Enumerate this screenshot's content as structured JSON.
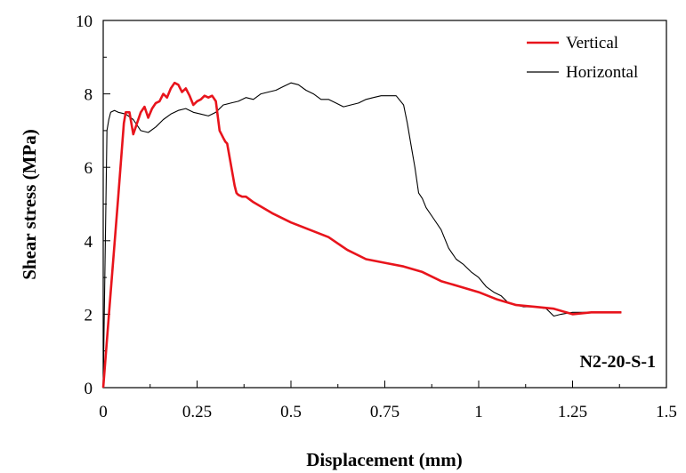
{
  "chart_data": {
    "type": "line",
    "title": "",
    "xlabel": "Displacement (mm)",
    "ylabel": "Shear stress (MPa)",
    "xlim": [
      0,
      1.5
    ],
    "ylim": [
      0,
      10
    ],
    "x_ticks": [
      0,
      0.25,
      0.5,
      0.75,
      1,
      1.25,
      1.5
    ],
    "x_tick_labels": [
      "0",
      "0.25",
      "0.5",
      "0.75",
      "1",
      "1.25",
      "1.5"
    ],
    "y_ticks": [
      0,
      2,
      4,
      6,
      8,
      10
    ],
    "y_tick_labels": [
      "0",
      "2",
      "4",
      "6",
      "8",
      "10"
    ],
    "grid": false,
    "legend_position": "top-right",
    "annotation": "N2-20-S-1",
    "series": [
      {
        "name": "Vertical",
        "color": "#e8141c",
        "x": [
          0,
          0.02,
          0.04,
          0.055,
          0.06,
          0.07,
          0.08,
          0.09,
          0.1,
          0.11,
          0.12,
          0.13,
          0.14,
          0.15,
          0.16,
          0.17,
          0.18,
          0.19,
          0.2,
          0.21,
          0.22,
          0.23,
          0.24,
          0.25,
          0.26,
          0.27,
          0.28,
          0.29,
          0.3,
          0.31,
          0.32,
          0.325,
          0.33,
          0.35,
          0.355,
          0.36,
          0.37,
          0.38,
          0.4,
          0.45,
          0.5,
          0.55,
          0.6,
          0.65,
          0.7,
          0.75,
          0.8,
          0.85,
          0.9,
          0.95,
          1.0,
          1.05,
          1.1,
          1.15,
          1.2,
          1.25,
          1.3,
          1.35,
          1.38
        ],
        "y": [
          0,
          2.6,
          5.2,
          7.2,
          7.5,
          7.5,
          6.9,
          7.2,
          7.5,
          7.65,
          7.35,
          7.6,
          7.75,
          7.8,
          8.0,
          7.9,
          8.15,
          8.3,
          8.25,
          8.05,
          8.15,
          7.95,
          7.7,
          7.8,
          7.85,
          7.95,
          7.9,
          7.95,
          7.8,
          7.0,
          6.8,
          6.7,
          6.65,
          5.5,
          5.3,
          5.25,
          5.2,
          5.2,
          5.05,
          4.75,
          4.5,
          4.3,
          4.1,
          3.75,
          3.5,
          3.4,
          3.3,
          3.15,
          2.9,
          2.75,
          2.6,
          2.4,
          2.25,
          2.2,
          2.15,
          2.0,
          2.05,
          2.05,
          2.05
        ]
      },
      {
        "name": "Horizontal",
        "color": "#000000",
        "x": [
          0,
          0.005,
          0.01,
          0.015,
          0.02,
          0.03,
          0.04,
          0.06,
          0.08,
          0.1,
          0.12,
          0.14,
          0.16,
          0.18,
          0.2,
          0.22,
          0.24,
          0.26,
          0.28,
          0.3,
          0.32,
          0.34,
          0.36,
          0.38,
          0.4,
          0.42,
          0.44,
          0.46,
          0.48,
          0.5,
          0.52,
          0.54,
          0.56,
          0.58,
          0.6,
          0.62,
          0.64,
          0.66,
          0.68,
          0.7,
          0.72,
          0.74,
          0.76,
          0.78,
          0.8,
          0.81,
          0.82,
          0.83,
          0.84,
          0.85,
          0.86,
          0.88,
          0.9,
          0.92,
          0.94,
          0.96,
          0.98,
          1.0,
          1.02,
          1.04,
          1.06,
          1.08,
          1.1,
          1.12,
          1.15,
          1.18,
          1.2,
          1.22,
          1.25,
          1.3,
          1.35,
          1.38
        ],
        "y": [
          0,
          3.5,
          7.0,
          7.3,
          7.5,
          7.55,
          7.5,
          7.45,
          7.3,
          7.0,
          6.95,
          7.1,
          7.3,
          7.45,
          7.55,
          7.6,
          7.5,
          7.45,
          7.4,
          7.5,
          7.7,
          7.75,
          7.8,
          7.9,
          7.85,
          8.0,
          8.05,
          8.1,
          8.2,
          8.3,
          8.25,
          8.1,
          8.0,
          7.85,
          7.85,
          7.75,
          7.65,
          7.7,
          7.75,
          7.85,
          7.9,
          7.95,
          7.95,
          7.95,
          7.7,
          7.2,
          6.6,
          6.0,
          5.3,
          5.15,
          4.9,
          4.6,
          4.3,
          3.8,
          3.5,
          3.35,
          3.15,
          3.0,
          2.75,
          2.6,
          2.5,
          2.3,
          2.25,
          2.2,
          2.2,
          2.15,
          1.95,
          2.0,
          2.05,
          2.05,
          2.05,
          2.05
        ]
      }
    ]
  }
}
